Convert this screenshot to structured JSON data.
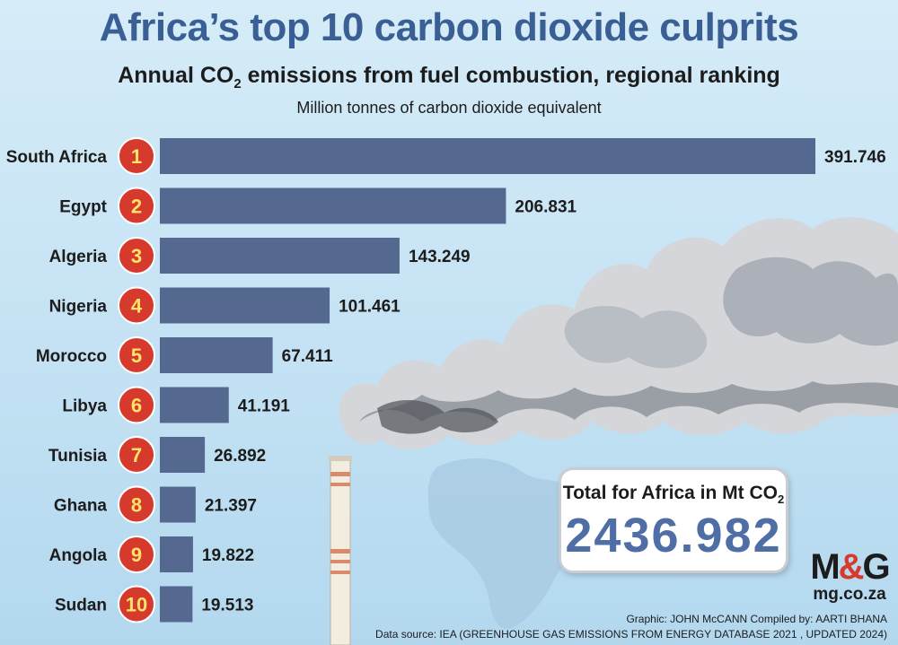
{
  "header": {
    "title": "Africa’s top 10 carbon dioxide culprits",
    "subtitle_pre": "Annual CO",
    "subtitle_sub": "2",
    "subtitle_post": " emissions from fuel combustion, regional ranking",
    "units": "Million tonnes of carbon dioxide equivalent"
  },
  "chart_data": {
    "type": "bar",
    "orientation": "horizontal",
    "title": "Africa’s top 10 carbon dioxide culprits",
    "units": "Million tonnes of carbon dioxide equivalent",
    "categories": [
      "South Africa",
      "Egypt",
      "Algeria",
      "Nigeria",
      "Morocco",
      "Libya",
      "Tunisia",
      "Ghana",
      "Angola",
      "Sudan"
    ],
    "ranks": [
      "1",
      "2",
      "3",
      "4",
      "5",
      "6",
      "7",
      "8",
      "9",
      "10"
    ],
    "values": [
      391.746,
      206.831,
      143.249,
      101.461,
      67.411,
      41.191,
      26.892,
      21.397,
      19.822,
      19.513
    ],
    "value_labels": [
      "391.746",
      "206.831",
      "143.249",
      "101.461",
      "67.411",
      "41.191",
      "26.892",
      "21.397",
      "19.822",
      "19.513"
    ],
    "xlim": [
      0,
      391.746
    ],
    "grid": false,
    "legend": "none"
  },
  "total": {
    "label_pre": "Total for Africa in Mt CO",
    "label_sub": "2",
    "value": "2436.982"
  },
  "logo": {
    "mark_left": "M",
    "mark_amp": "&",
    "mark_right": "G",
    "url": "mg.co.za"
  },
  "credits": {
    "graphic": "Graphic: JOHN McCANN  Compiled by: AARTI BHANA",
    "source": "Data source: IEA (GREENHOUSE GAS EMISSIONS FROM ENERGY DATABASE 2021 , UPDATED 2024)"
  },
  "colors": {
    "bar": "#55688f",
    "rank_circle": "#d63a2c",
    "rank_text": "#ffe36a",
    "title": "#3a5f95",
    "total_value": "#4f6ea6"
  }
}
